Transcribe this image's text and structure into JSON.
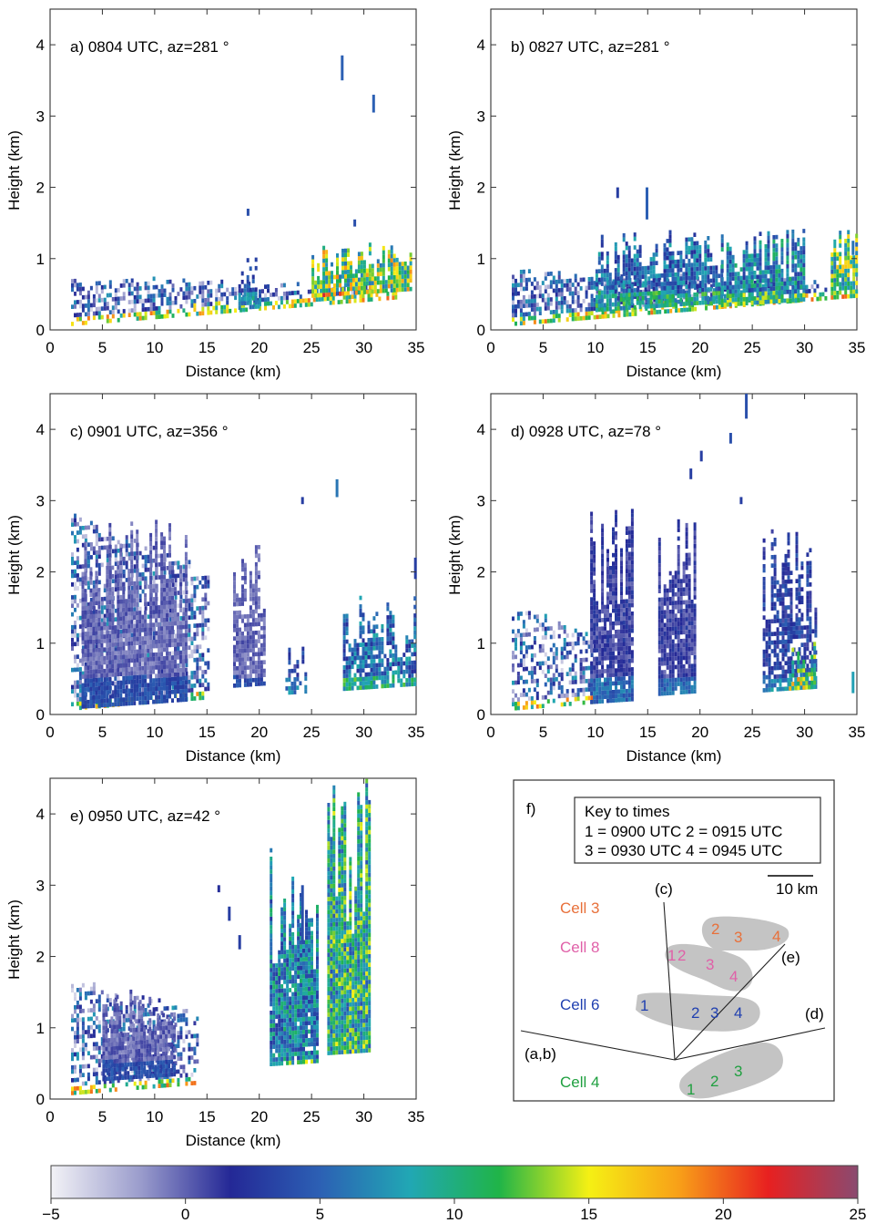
{
  "panels": [
    {
      "label": "a)  0804 UTC, az=281 °",
      "xlabel": "Distance (km)",
      "ylabel": "Height (km)"
    },
    {
      "label": "b)  0827 UTC, az=281 °",
      "xlabel": "Distance (km)",
      "ylabel": "Height (km)"
    },
    {
      "label": "c)  0901 UTC, az=356 °",
      "xlabel": "Distance (km)",
      "ylabel": "Height (km)"
    },
    {
      "label": "d)  0928 UTC, az=78 °",
      "xlabel": "Distance (km)",
      "ylabel": "Height (km)"
    },
    {
      "label": "e)  0950 UTC, az=42 °",
      "xlabel": "Distance (km)",
      "ylabel": "Height (km)"
    }
  ],
  "map_panel": {
    "label": "f)",
    "key_title": "Key to times",
    "key_line1": "1 = 0900 UTC  2 = 0915 UTC",
    "key_line2": "3 = 0930 UTC  4 = 0945 UTC",
    "scale_label": "10 km",
    "cells": [
      {
        "name": "Cell 3",
        "color": "#e8703a",
        "times": [
          "2",
          "3",
          "4"
        ]
      },
      {
        "name": "Cell 8",
        "color": "#e060a8",
        "times": [
          "1",
          "2",
          "3",
          "4"
        ]
      },
      {
        "name": "Cell 6",
        "color": "#2040b0",
        "times": [
          "1",
          "2",
          "3",
          "4"
        ]
      },
      {
        "name": "Cell 4",
        "color": "#20a040",
        "times": [
          "1",
          "2",
          "3"
        ]
      }
    ],
    "lines": [
      "(a,b)",
      "(c)",
      "(d)",
      "(e)"
    ]
  },
  "colorbar": {
    "ticks": [
      "−5",
      "0",
      "5",
      "10",
      "15",
      "20",
      "25"
    ],
    "stops": [
      "#f2f2f6",
      "#9a9ccc",
      "#242896",
      "#2c60b4",
      "#21a7b4",
      "#20b448",
      "#f5f014",
      "#f8a018",
      "#e82020",
      "#8a4a70"
    ]
  },
  "chart_data": {
    "type": "heatmap",
    "xlim": [
      0,
      35
    ],
    "ylim": [
      0,
      4.5
    ],
    "xticks": [
      "0",
      "5",
      "10",
      "15",
      "20",
      "25",
      "30",
      "35"
    ],
    "yticks": [
      "0",
      "1",
      "2",
      "3",
      "4"
    ],
    "color_scale": [
      -5,
      25
    ],
    "panels": [
      {
        "layers": [
          [
            2,
            33,
            0.3,
            0.65,
            0.55,
            0.6
          ]
        ],
        "echoes": [
          [
            27.8,
            3.5,
            3.85,
            5
          ],
          [
            30.8,
            3.05,
            3.3,
            5
          ],
          [
            18.8,
            1.6,
            1.7,
            4
          ],
          [
            29,
            1.45,
            1.55,
            4
          ]
        ],
        "columns": [
          [
            18,
            20,
            0.1,
            1.15,
            9,
            0.7
          ],
          [
            25,
            34.5,
            0.2,
            1.2,
            22,
            0.9
          ]
        ]
      },
      {
        "layers": [
          [
            2,
            32,
            0.35,
            0.75,
            0.65,
            0.6
          ]
        ],
        "echoes": [
          [
            14.8,
            1.55,
            2.0,
            5
          ],
          [
            12,
            1.85,
            2.0,
            3
          ],
          [
            34.5,
            1.05,
            1.25,
            6
          ]
        ],
        "columns": [
          [
            10,
            22,
            0.15,
            1.4,
            12,
            0.8
          ],
          [
            22,
            30,
            0.1,
            1.4,
            14,
            0.9
          ],
          [
            32.5,
            35,
            0.1,
            1.5,
            20,
            0.9
          ]
        ]
      },
      {
        "layers": [
          [
            2,
            15,
            0.05,
            2.75,
            0.45,
            0.5
          ]
        ],
        "echoes": [
          [
            24,
            2.95,
            3.05,
            3
          ],
          [
            27.3,
            3.05,
            3.3,
            6
          ],
          [
            34.8,
            1.9,
            2.2,
            3
          ]
        ],
        "columns": [
          [
            3,
            13,
            0.05,
            2.75,
            4,
            0.9
          ],
          [
            17.5,
            20.5,
            0.2,
            2.55,
            4,
            0.8
          ],
          [
            28,
            35,
            0.05,
            1.65,
            12,
            0.8
          ],
          [
            22.5,
            24.5,
            0.05,
            0.9,
            8,
            0.6
          ]
        ]
      },
      {
        "layers": [
          [
            2,
            10,
            0.05,
            1.5,
            0.45,
            0.5
          ]
        ],
        "echoes": [
          [
            24.3,
            4.15,
            4.5,
            4
          ],
          [
            22.8,
            3.8,
            3.95,
            4
          ],
          [
            20,
            3.55,
            3.7,
            3
          ],
          [
            19,
            3.3,
            3.45,
            3
          ],
          [
            23.8,
            2.95,
            3.05,
            3
          ],
          [
            34.5,
            0.3,
            0.6,
            8
          ]
        ],
        "columns": [
          [
            9.5,
            13.5,
            0.05,
            2.9,
            6,
            0.9
          ],
          [
            16,
            19.5,
            0.1,
            3.0,
            6,
            0.9
          ],
          [
            26,
            31,
            0.05,
            2.6,
            8,
            0.7
          ],
          [
            28.5,
            31,
            0.05,
            1.0,
            18,
            0.9
          ]
        ]
      },
      {
        "layers": [
          [
            2,
            14,
            0.2,
            1.6,
            0.45,
            0.5
          ]
        ],
        "echoes": [
          [
            16,
            2.9,
            3.0,
            2
          ],
          [
            17,
            2.5,
            2.7,
            3
          ],
          [
            18,
            2.1,
            2.3,
            3
          ],
          [
            24,
            2.2,
            3.0,
            4
          ]
        ],
        "columns": [
          [
            5,
            12,
            0.2,
            1.5,
            4,
            0.9
          ],
          [
            21,
            25.5,
            0.25,
            3.5,
            14,
            0.95
          ],
          [
            26.5,
            30.5,
            0.35,
            4.5,
            18,
            1.0
          ]
        ]
      }
    ]
  }
}
